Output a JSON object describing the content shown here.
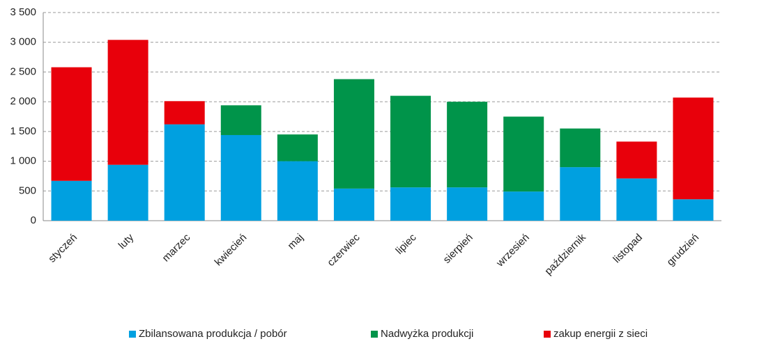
{
  "chart_data": {
    "type": "stacked_bar",
    "categories": [
      "styczeń",
      "luty",
      "marzec",
      "kwiecień",
      "maj",
      "czerwiec",
      "lipiec",
      "sierpień",
      "wrzesień",
      "październik",
      "listopad",
      "grudzień"
    ],
    "series": [
      {
        "name": "Zbilansowana produkcja / pobór",
        "color": "#00a0e0",
        "values": [
          670,
          940,
          1620,
          1440,
          1000,
          540,
          560,
          560,
          490,
          900,
          710,
          360
        ]
      },
      {
        "name": "Nadwyżka produkcji",
        "color": "#00944a",
        "values": [
          null,
          null,
          null,
          500,
          450,
          1840,
          1540,
          1440,
          1260,
          650,
          null,
          null
        ]
      },
      {
        "name": "zakup energii z sieci",
        "color": "#e8000b",
        "values": [
          1910,
          2100,
          390,
          null,
          null,
          null,
          null,
          null,
          null,
          null,
          620,
          1710
        ]
      }
    ],
    "ylim": [
      0,
      3500
    ],
    "yticks": [
      0,
      500,
      {
        "value": 1000,
        "label": "1 000"
      },
      {
        "value": 1500,
        "label": "1 500"
      },
      {
        "value": 2000,
        "label": "2 000"
      },
      {
        "value": 2500,
        "label": "2 500"
      },
      {
        "value": 3000,
        "label": "3 000"
      },
      {
        "value": 3500,
        "label": "3 500"
      }
    ],
    "grid": true,
    "legend": "bottom"
  }
}
